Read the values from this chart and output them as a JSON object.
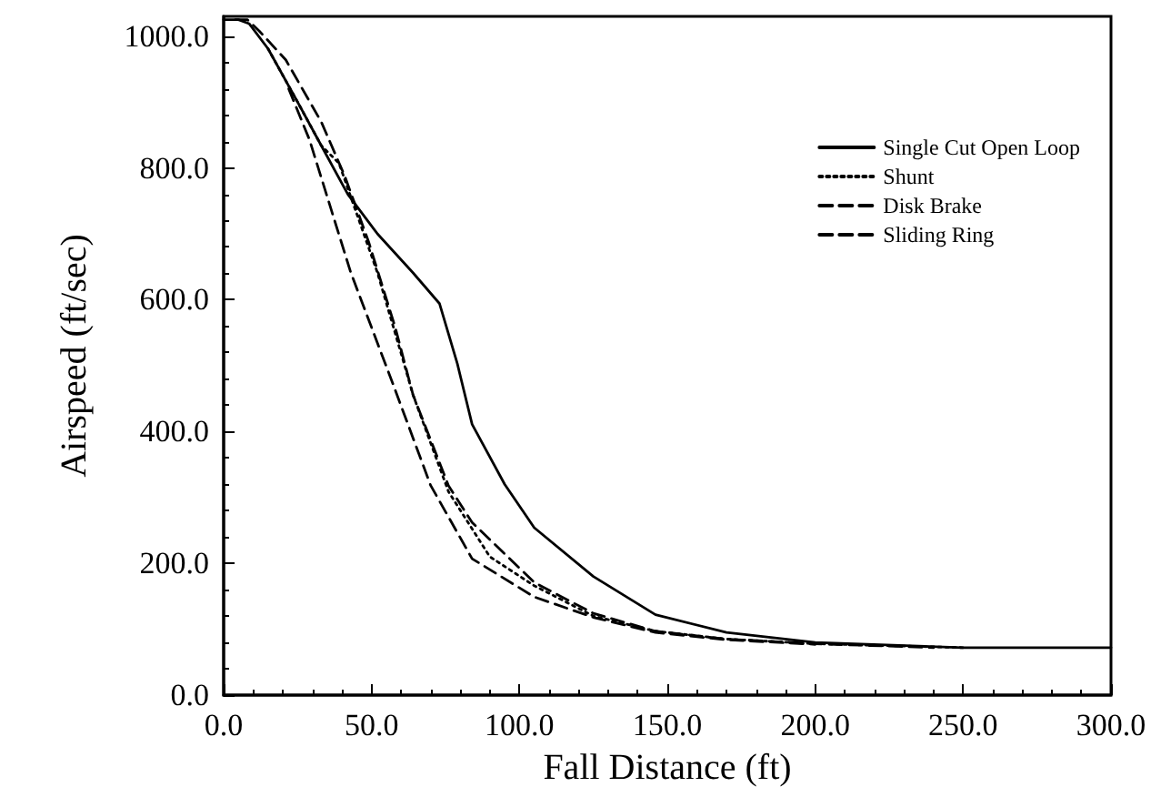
{
  "chart_data": {
    "type": "line",
    "xlabel": "Fall Distance (ft)",
    "ylabel": "Airspeed (ft/sec)",
    "xlim": [
      0,
      300
    ],
    "ylim": [
      0,
      1030
    ],
    "xticks": [
      {
        "value": 0,
        "label": "0.0"
      },
      {
        "value": 50,
        "label": "50.0"
      },
      {
        "value": 100,
        "label": "100.0"
      },
      {
        "value": 150,
        "label": "150.0"
      },
      {
        "value": 200,
        "label": "200.0"
      },
      {
        "value": 250,
        "label": "250.0"
      },
      {
        "value": 300,
        "label": "300.0"
      }
    ],
    "yticks": [
      {
        "value": 0,
        "label": "0.0"
      },
      {
        "value": 200,
        "label": "200.0"
      },
      {
        "value": 400,
        "label": "400.0"
      },
      {
        "value": 600,
        "label": "600.0"
      },
      {
        "value": 800,
        "label": "800.0"
      },
      {
        "value": 1000,
        "label": "1000.0"
      }
    ],
    "grid": false,
    "legend": "top right",
    "marker": "none",
    "series": [
      {
        "name": "Single Cut Open Loop",
        "color": "#000000",
        "line_style": "solid",
        "x": [
          0,
          5,
          8.6,
          15,
          25,
          33,
          42,
          52,
          64,
          73,
          79,
          84,
          95,
          105,
          125,
          146,
          170,
          200,
          250,
          300
        ],
        "values": [
          1025,
          1025,
          1019,
          981,
          900,
          834,
          760,
          700,
          641,
          594,
          503,
          411,
          320,
          254,
          180,
          122,
          95,
          80,
          72,
          72
        ]
      },
      {
        "name": "Shunt",
        "color": "#000000",
        "line_style": "dotted",
        "x": [
          15,
          25,
          33,
          39,
          52,
          61,
          64,
          76,
          90,
          105,
          125,
          146,
          170,
          200,
          250
        ],
        "values": [
          981,
          900,
          834,
          807,
          641,
          503,
          456,
          309,
          210,
          166,
          120,
          97,
          85,
          78,
          72
        ]
      },
      {
        "name": "Disk Brake",
        "color": "#000000",
        "line_style": "dashed",
        "x": [
          22,
          29,
          43,
          57,
          70,
          84,
          105,
          125,
          146,
          170,
          200
        ],
        "values": [
          920,
          843,
          641,
          475,
          318,
          207,
          149,
          118,
          95,
          84,
          77
        ]
      },
      {
        "name": "Sliding Ring",
        "color": "#000000",
        "line_style": "dashed",
        "x": [
          4,
          8,
          12,
          21,
          33,
          41,
          49,
          58,
          64,
          76,
          84,
          105,
          125,
          146,
          170,
          200,
          240
        ],
        "values": [
          1025,
          1025,
          1008,
          964,
          870,
          787,
          688,
          558,
          456,
          318,
          262,
          171,
          124,
          97,
          85,
          78,
          72
        ]
      }
    ]
  }
}
